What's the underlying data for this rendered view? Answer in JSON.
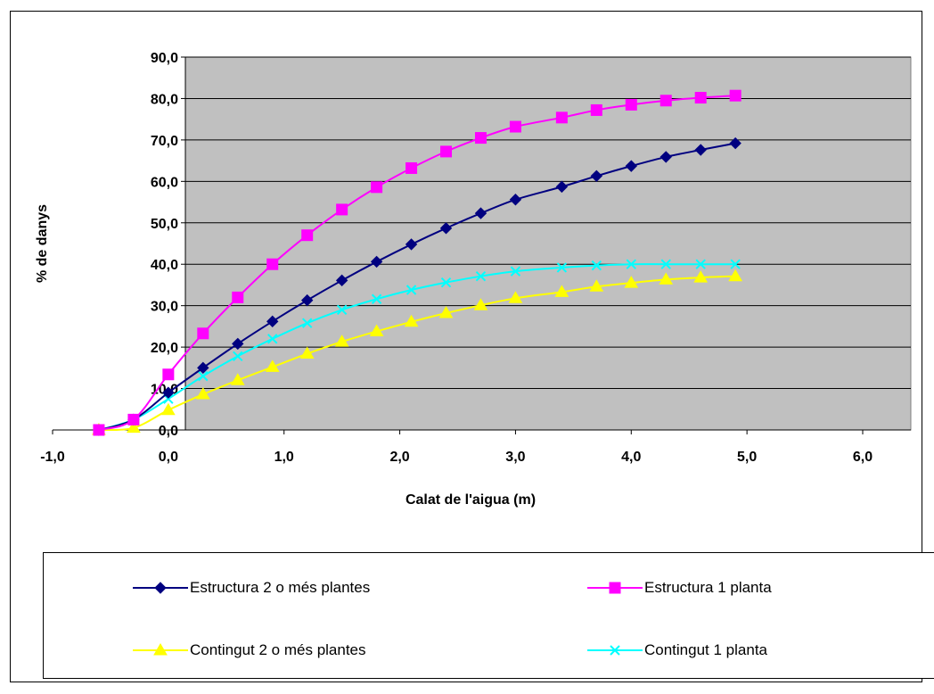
{
  "chart_data": {
    "type": "line",
    "xlabel": "Calat de l'aigua (m)",
    "ylabel": "% de danys",
    "xlim": [
      -1.0,
      6.0
    ],
    "ylim": [
      0.0,
      90.0
    ],
    "xticks": [
      "-1,0",
      "0,0",
      "1,0",
      "2,0",
      "3,0",
      "4,0",
      "5,0",
      "6,0"
    ],
    "yticks": [
      "0,0",
      "10,0",
      "20,0",
      "30,0",
      "40,0",
      "50,0",
      "60,0",
      "70,0",
      "80,0",
      "90,0"
    ],
    "grid": "horizontal",
    "plot_background": "#c0c0c0",
    "legend_position": "bottom",
    "series": [
      {
        "name": "Estructura 2 o més plantes",
        "color": "#000080",
        "marker": "diamond",
        "x": [
          -0.6,
          -0.3,
          0.0,
          0.3,
          0.6,
          0.9,
          1.2,
          1.5,
          1.8,
          2.1,
          2.4,
          2.7,
          3.0,
          3.4,
          3.7,
          4.0,
          4.3,
          4.6,
          4.9
        ],
        "y": [
          0.0,
          2.5,
          9.0,
          15.0,
          20.8,
          26.2,
          31.3,
          36.1,
          40.6,
          44.8,
          48.7,
          52.3,
          55.6,
          58.7,
          61.3,
          63.7,
          65.9,
          67.6,
          69.2
        ]
      },
      {
        "name": "Estructura 1 planta",
        "color": "#ff00ff",
        "marker": "square",
        "x": [
          -0.6,
          -0.3,
          0.0,
          0.3,
          0.6,
          0.9,
          1.2,
          1.5,
          1.8,
          2.1,
          2.4,
          2.7,
          3.0,
          3.4,
          3.7,
          4.0,
          4.3,
          4.6,
          4.9
        ],
        "y": [
          0.0,
          2.5,
          13.4,
          23.3,
          32.0,
          40.0,
          47.0,
          53.2,
          58.6,
          63.2,
          67.2,
          70.5,
          73.2,
          75.4,
          77.2,
          78.5,
          79.5,
          80.2,
          80.7
        ]
      },
      {
        "name": "Contingut 2 o més plantes",
        "color": "#ffff00",
        "marker": "triangle",
        "x": [
          -0.6,
          -0.3,
          0.0,
          0.3,
          0.6,
          0.9,
          1.2,
          1.5,
          1.8,
          2.1,
          2.4,
          2.7,
          3.0,
          3.4,
          3.7,
          4.0,
          4.3,
          4.6,
          4.9
        ],
        "y": [
          0.0,
          0.5,
          4.8,
          8.6,
          12.0,
          15.2,
          18.4,
          21.3,
          23.8,
          26.1,
          28.2,
          30.1,
          31.8,
          33.3,
          34.6,
          35.5,
          36.3,
          36.8,
          37.1
        ]
      },
      {
        "name": "Contingut 1 planta",
        "color": "#00ffff",
        "marker": "x",
        "x": [
          -0.6,
          -0.3,
          0.0,
          0.3,
          0.6,
          0.9,
          1.2,
          1.5,
          1.8,
          2.1,
          2.4,
          2.7,
          3.0,
          3.4,
          3.7,
          4.0,
          4.3,
          4.6,
          4.9
        ],
        "y": [
          0.0,
          2.5,
          7.5,
          13.0,
          17.8,
          22.0,
          25.8,
          29.0,
          31.6,
          33.8,
          35.6,
          37.1,
          38.3,
          39.2,
          39.7,
          40.0,
          40.0,
          40.0,
          40.0
        ]
      }
    ]
  }
}
